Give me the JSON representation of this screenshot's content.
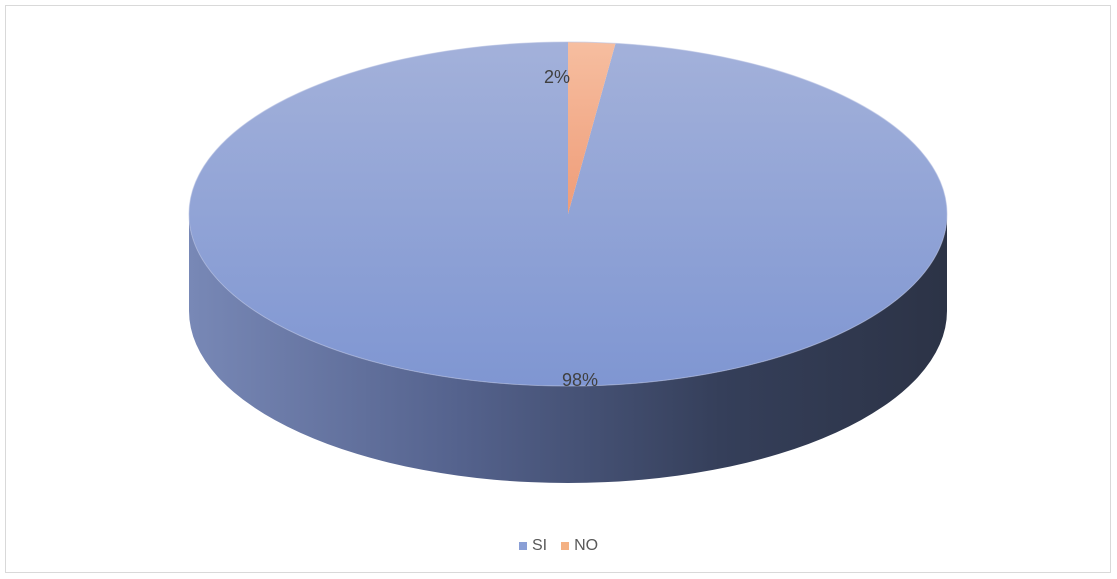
{
  "chart_data": {
    "type": "pie",
    "style": "3d",
    "categories": [
      "SI",
      "NO"
    ],
    "values": [
      98,
      2
    ],
    "data_labels": [
      "98%",
      "2%"
    ],
    "colors": [
      "#8a9fd6",
      "#f4b183"
    ],
    "legend": {
      "position": "bottom",
      "entries": [
        "SI",
        "NO"
      ]
    },
    "title": ""
  }
}
